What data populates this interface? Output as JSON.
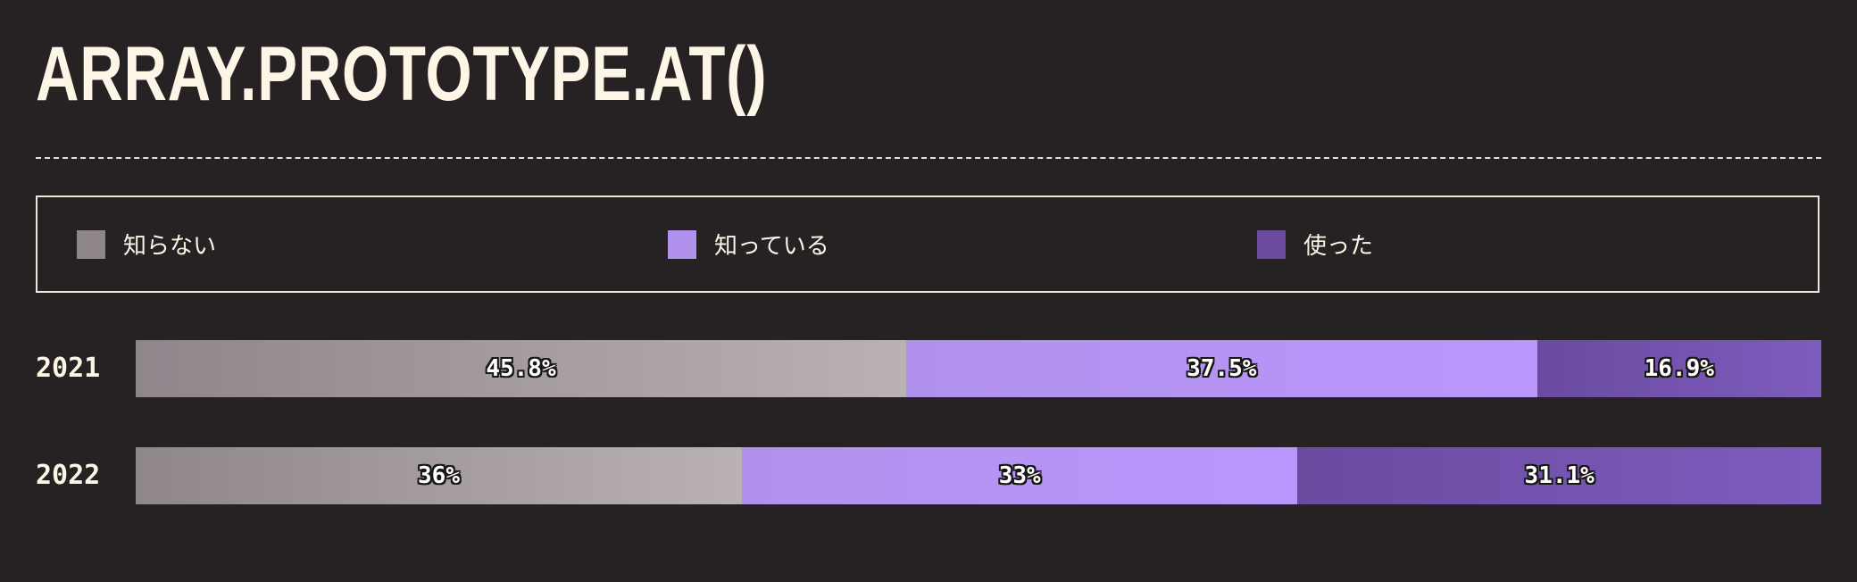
{
  "chart_data": {
    "type": "bar",
    "orientation": "horizontal",
    "stacked": true,
    "title": "ARRAY.PROTOTYPE.AT()",
    "categories": [
      "2021",
      "2022"
    ],
    "series": [
      {
        "name": "知らない",
        "values": [
          45.8,
          36
        ],
        "labels": [
          "45.8%",
          "36%"
        ],
        "color": "#8f868c",
        "color_end": "#b9b1b3"
      },
      {
        "name": "知っている",
        "values": [
          37.5,
          33
        ],
        "labels": [
          "37.5%",
          "33%"
        ],
        "color": "#b092ec",
        "color_end": "#bb96fd"
      },
      {
        "name": "使った",
        "values": [
          16.9,
          31.1
        ],
        "labels": [
          "16.9%",
          "31.1%"
        ],
        "color": "#6a4ba0",
        "color_end": "#7d5cbd"
      }
    ],
    "unit": "%",
    "legend_position": "top",
    "grid": false
  },
  "colors": {
    "background": "#262224",
    "text": "#fdf6e6"
  }
}
